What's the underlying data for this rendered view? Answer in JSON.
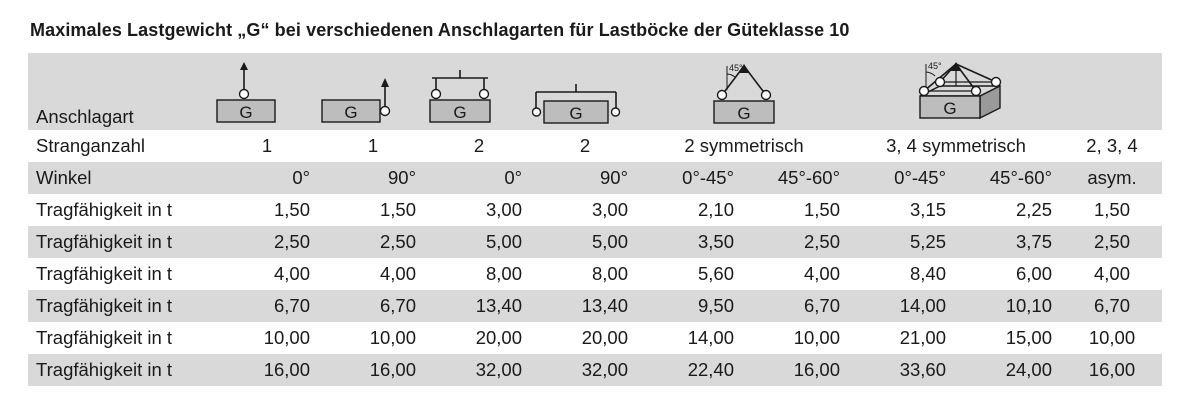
{
  "title": "Maximales Lastgewicht „G“ bei verschiedenen Anschlagarten für Lastböcke der Güteklasse 10",
  "icon_letter": "G",
  "angle_label": "45°",
  "header": {
    "anschlagart": "Anschlagart",
    "icons": [
      "single-vertical-top-icon",
      "single-vertical-side-icon",
      "two-leg-top-spreader-icon",
      "two-leg-side-spreader-icon",
      "two-leg-symmetric-icon",
      "multi-leg-3d-icon"
    ]
  },
  "strangzahl": {
    "label": "Stranganzahl",
    "values": [
      "1",
      "1",
      "2",
      "2",
      "2 symmetrisch",
      "3, 4 symmetrisch",
      "2, 3, 4"
    ]
  },
  "winkel": {
    "label": "Winkel",
    "values": [
      "0°",
      "90°",
      "0°",
      "90°",
      "0°-45°",
      "45°-60°",
      "0°-45°",
      "45°-60°",
      "asym."
    ]
  },
  "rows": [
    {
      "label": "Tragfähigkeit in t",
      "values": [
        "1,50",
        "1,50",
        "3,00",
        "3,00",
        "2,10",
        "1,50",
        "3,15",
        "2,25",
        "1,50"
      ]
    },
    {
      "label": "Tragfähigkeit in t",
      "values": [
        "2,50",
        "2,50",
        "5,00",
        "5,00",
        "3,50",
        "2,50",
        "5,25",
        "3,75",
        "2,50"
      ]
    },
    {
      "label": "Tragfähigkeit in t",
      "values": [
        "4,00",
        "4,00",
        "8,00",
        "8,00",
        "5,60",
        "4,00",
        "8,40",
        "6,00",
        "4,00"
      ]
    },
    {
      "label": "Tragfähigkeit in t",
      "values": [
        "6,70",
        "6,70",
        "13,40",
        "13,40",
        "9,50",
        "6,70",
        "14,00",
        "10,10",
        "6,70"
      ]
    },
    {
      "label": "Tragfähigkeit in t",
      "values": [
        "10,00",
        "10,00",
        "20,00",
        "20,00",
        "14,00",
        "10,00",
        "21,00",
        "15,00",
        "10,00"
      ]
    },
    {
      "label": "Tragfähigkeit in t",
      "values": [
        "16,00",
        "16,00",
        "32,00",
        "32,00",
        "22,40",
        "16,00",
        "33,60",
        "24,00",
        "16,00"
      ]
    }
  ],
  "colors": {
    "row_gray": "#d9d9d9",
    "block_fill": "#bdbdbd",
    "line": "#1a1a1a"
  }
}
